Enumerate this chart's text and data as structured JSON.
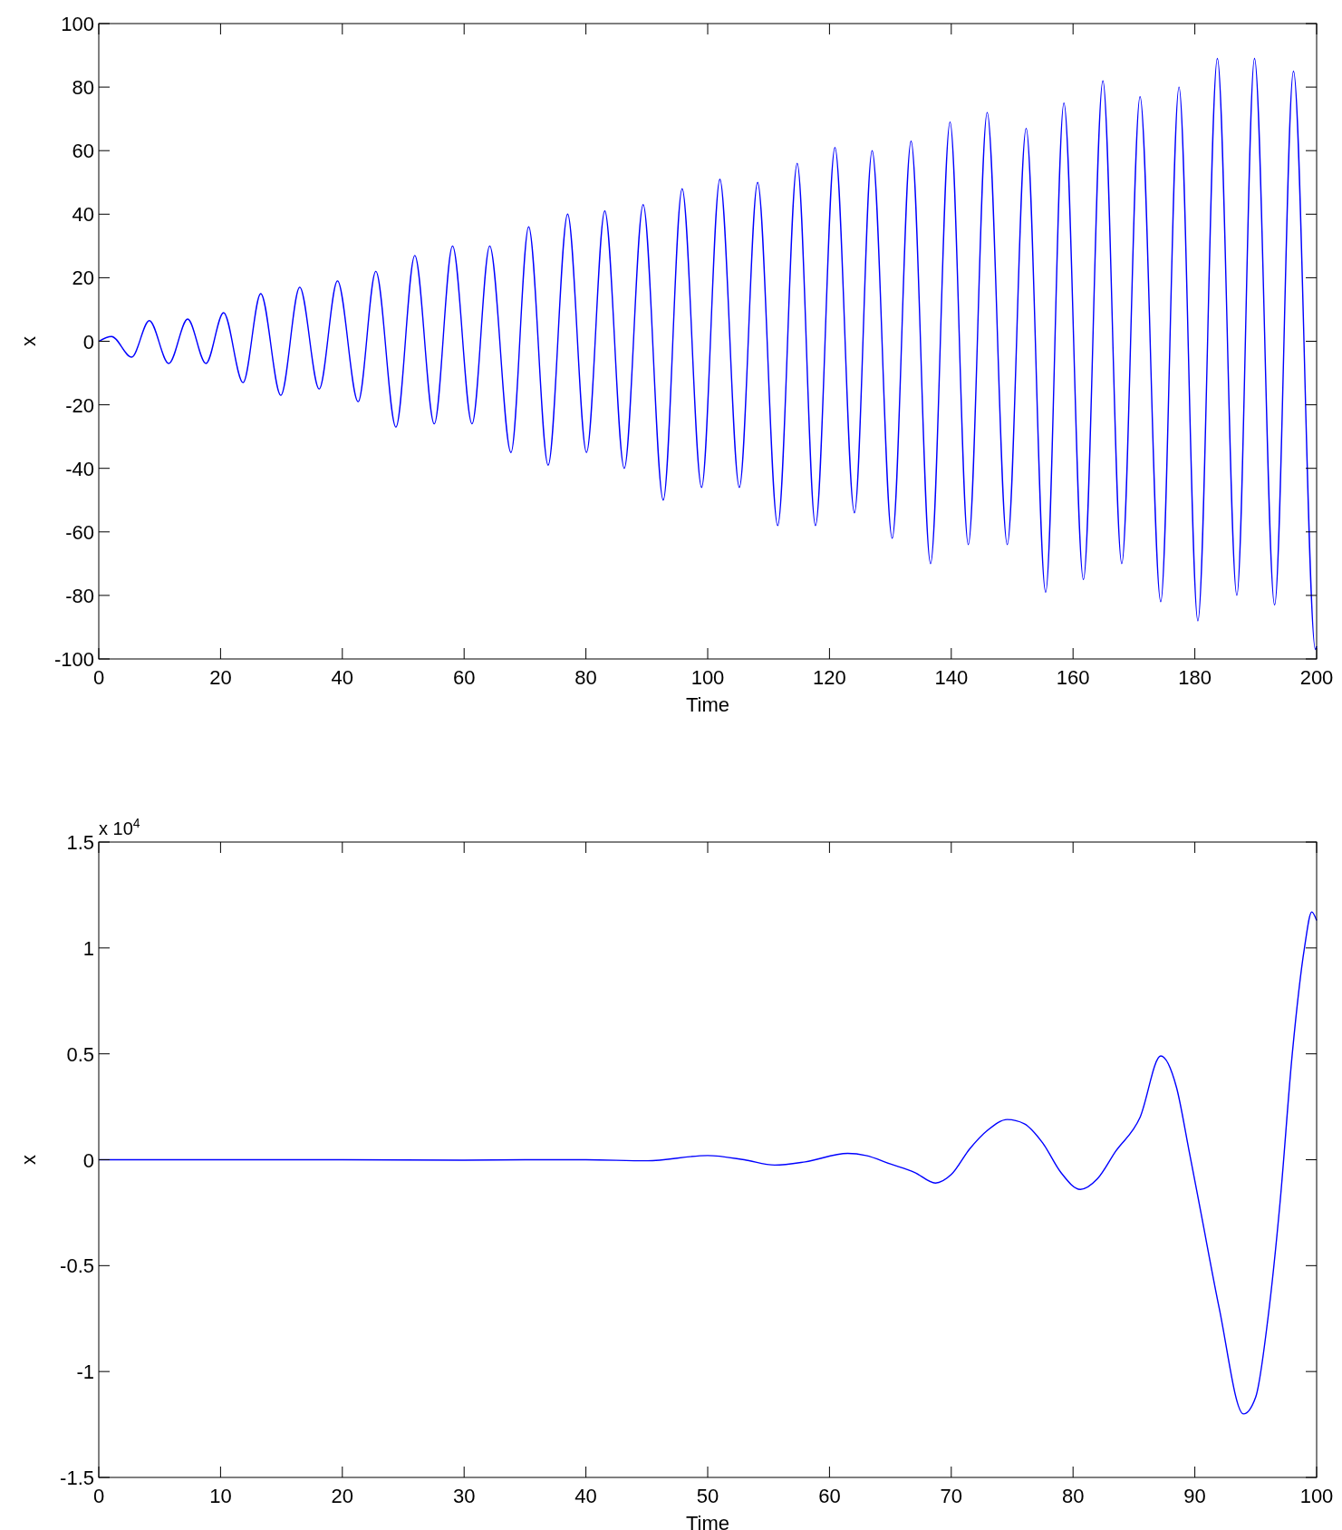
{
  "chart_data": [
    {
      "type": "line",
      "xlabel": "Time",
      "ylabel": "x",
      "xlim": [
        0,
        200
      ],
      "ylim": [
        -100,
        100
      ],
      "xticks": [
        0,
        20,
        40,
        60,
        80,
        100,
        120,
        140,
        160,
        180,
        200
      ],
      "yticks": [
        -100,
        -80,
        -60,
        -40,
        -20,
        0,
        20,
        40,
        60,
        80,
        100
      ],
      "grid": false,
      "series": [
        {
          "color": "#0000ff",
          "x": [
            0,
            2.1,
            5.4,
            8.3,
            11.5,
            14.6,
            17.6,
            20.5,
            23.7,
            26.6,
            29.9,
            33,
            36.2,
            39.2,
            42.6,
            45.5,
            48.8,
            51.9,
            55.1,
            58.1,
            61.3,
            64.2,
            67.7,
            70.6,
            73.8,
            77,
            80.1,
            83.1,
            86.3,
            89.4,
            92.7,
            95.8,
            99,
            102,
            105.2,
            108.2,
            111.5,
            114.7,
            117.7,
            120.9,
            124.1,
            127,
            130.3,
            133.4,
            136.6,
            139.8,
            142.8,
            145.9,
            149.2,
            152.3,
            155.5,
            158.5,
            161.7,
            164.9,
            168,
            171,
            174.4,
            177.4,
            180.5,
            183.7,
            186.9,
            189.8,
            193.1,
            196.2,
            199.8,
            200
          ],
          "values": [
            0,
            1.5,
            -5,
            6.5,
            -7,
            7,
            -7,
            9,
            -13,
            15,
            -17,
            17,
            -15,
            19,
            -19,
            22,
            -27,
            27,
            -26,
            30,
            -26,
            30,
            -35,
            36,
            -39,
            40,
            -35,
            41,
            -40,
            43,
            -50,
            48,
            -46,
            51,
            -46,
            50,
            -58,
            56,
            -58,
            61,
            -54,
            60,
            -62,
            63,
            -70,
            69,
            -64,
            72,
            -64,
            67,
            -79,
            75,
            -75,
            82,
            -70,
            77,
            -82,
            80,
            -88,
            89,
            -80,
            89,
            -83,
            85,
            -97,
            -96
          ]
        }
      ]
    },
    {
      "type": "line",
      "xlabel": "Time",
      "ylabel": "x",
      "annotations": [
        "x 10$^{4}$"
      ],
      "xlim": [
        0,
        100
      ],
      "ylim": [
        -1.5,
        1.5
      ],
      "xticks": [
        0,
        10,
        20,
        30,
        40,
        50,
        60,
        70,
        80,
        90,
        100
      ],
      "yticks": [
        -1.5,
        -1,
        -0.5,
        0,
        0.5,
        1,
        1.5
      ],
      "grid": false,
      "series": [
        {
          "color": "#0000ff",
          "x": [
            0,
            10,
            20,
            30,
            35,
            40,
            45,
            50,
            53,
            55.5,
            58,
            61.5,
            63,
            65,
            67,
            68.7,
            70,
            71.5,
            73,
            74.6,
            76,
            77.5,
            79,
            80.6,
            82,
            83.5,
            85.5,
            87.2,
            88.5,
            89.5,
            90.5,
            92,
            94,
            95,
            96,
            97,
            98,
            99,
            99.6,
            100
          ],
          "values": [
            0,
            0,
            0,
            -0.002,
            0,
            0,
            -0.005,
            0.02,
            0,
            -0.025,
            -0.01,
            0.03,
            0.02,
            -0.02,
            -0.06,
            -0.11,
            -0.07,
            0.05,
            0.14,
            0.19,
            0.17,
            0.08,
            -0.06,
            -0.14,
            -0.09,
            0.04,
            0.2,
            0.49,
            0.34,
            0.05,
            -0.25,
            -0.7,
            -1.2,
            -1.12,
            -0.75,
            -0.2,
            0.5,
            1.0,
            1.17,
            1.13
          ]
        }
      ]
    }
  ]
}
